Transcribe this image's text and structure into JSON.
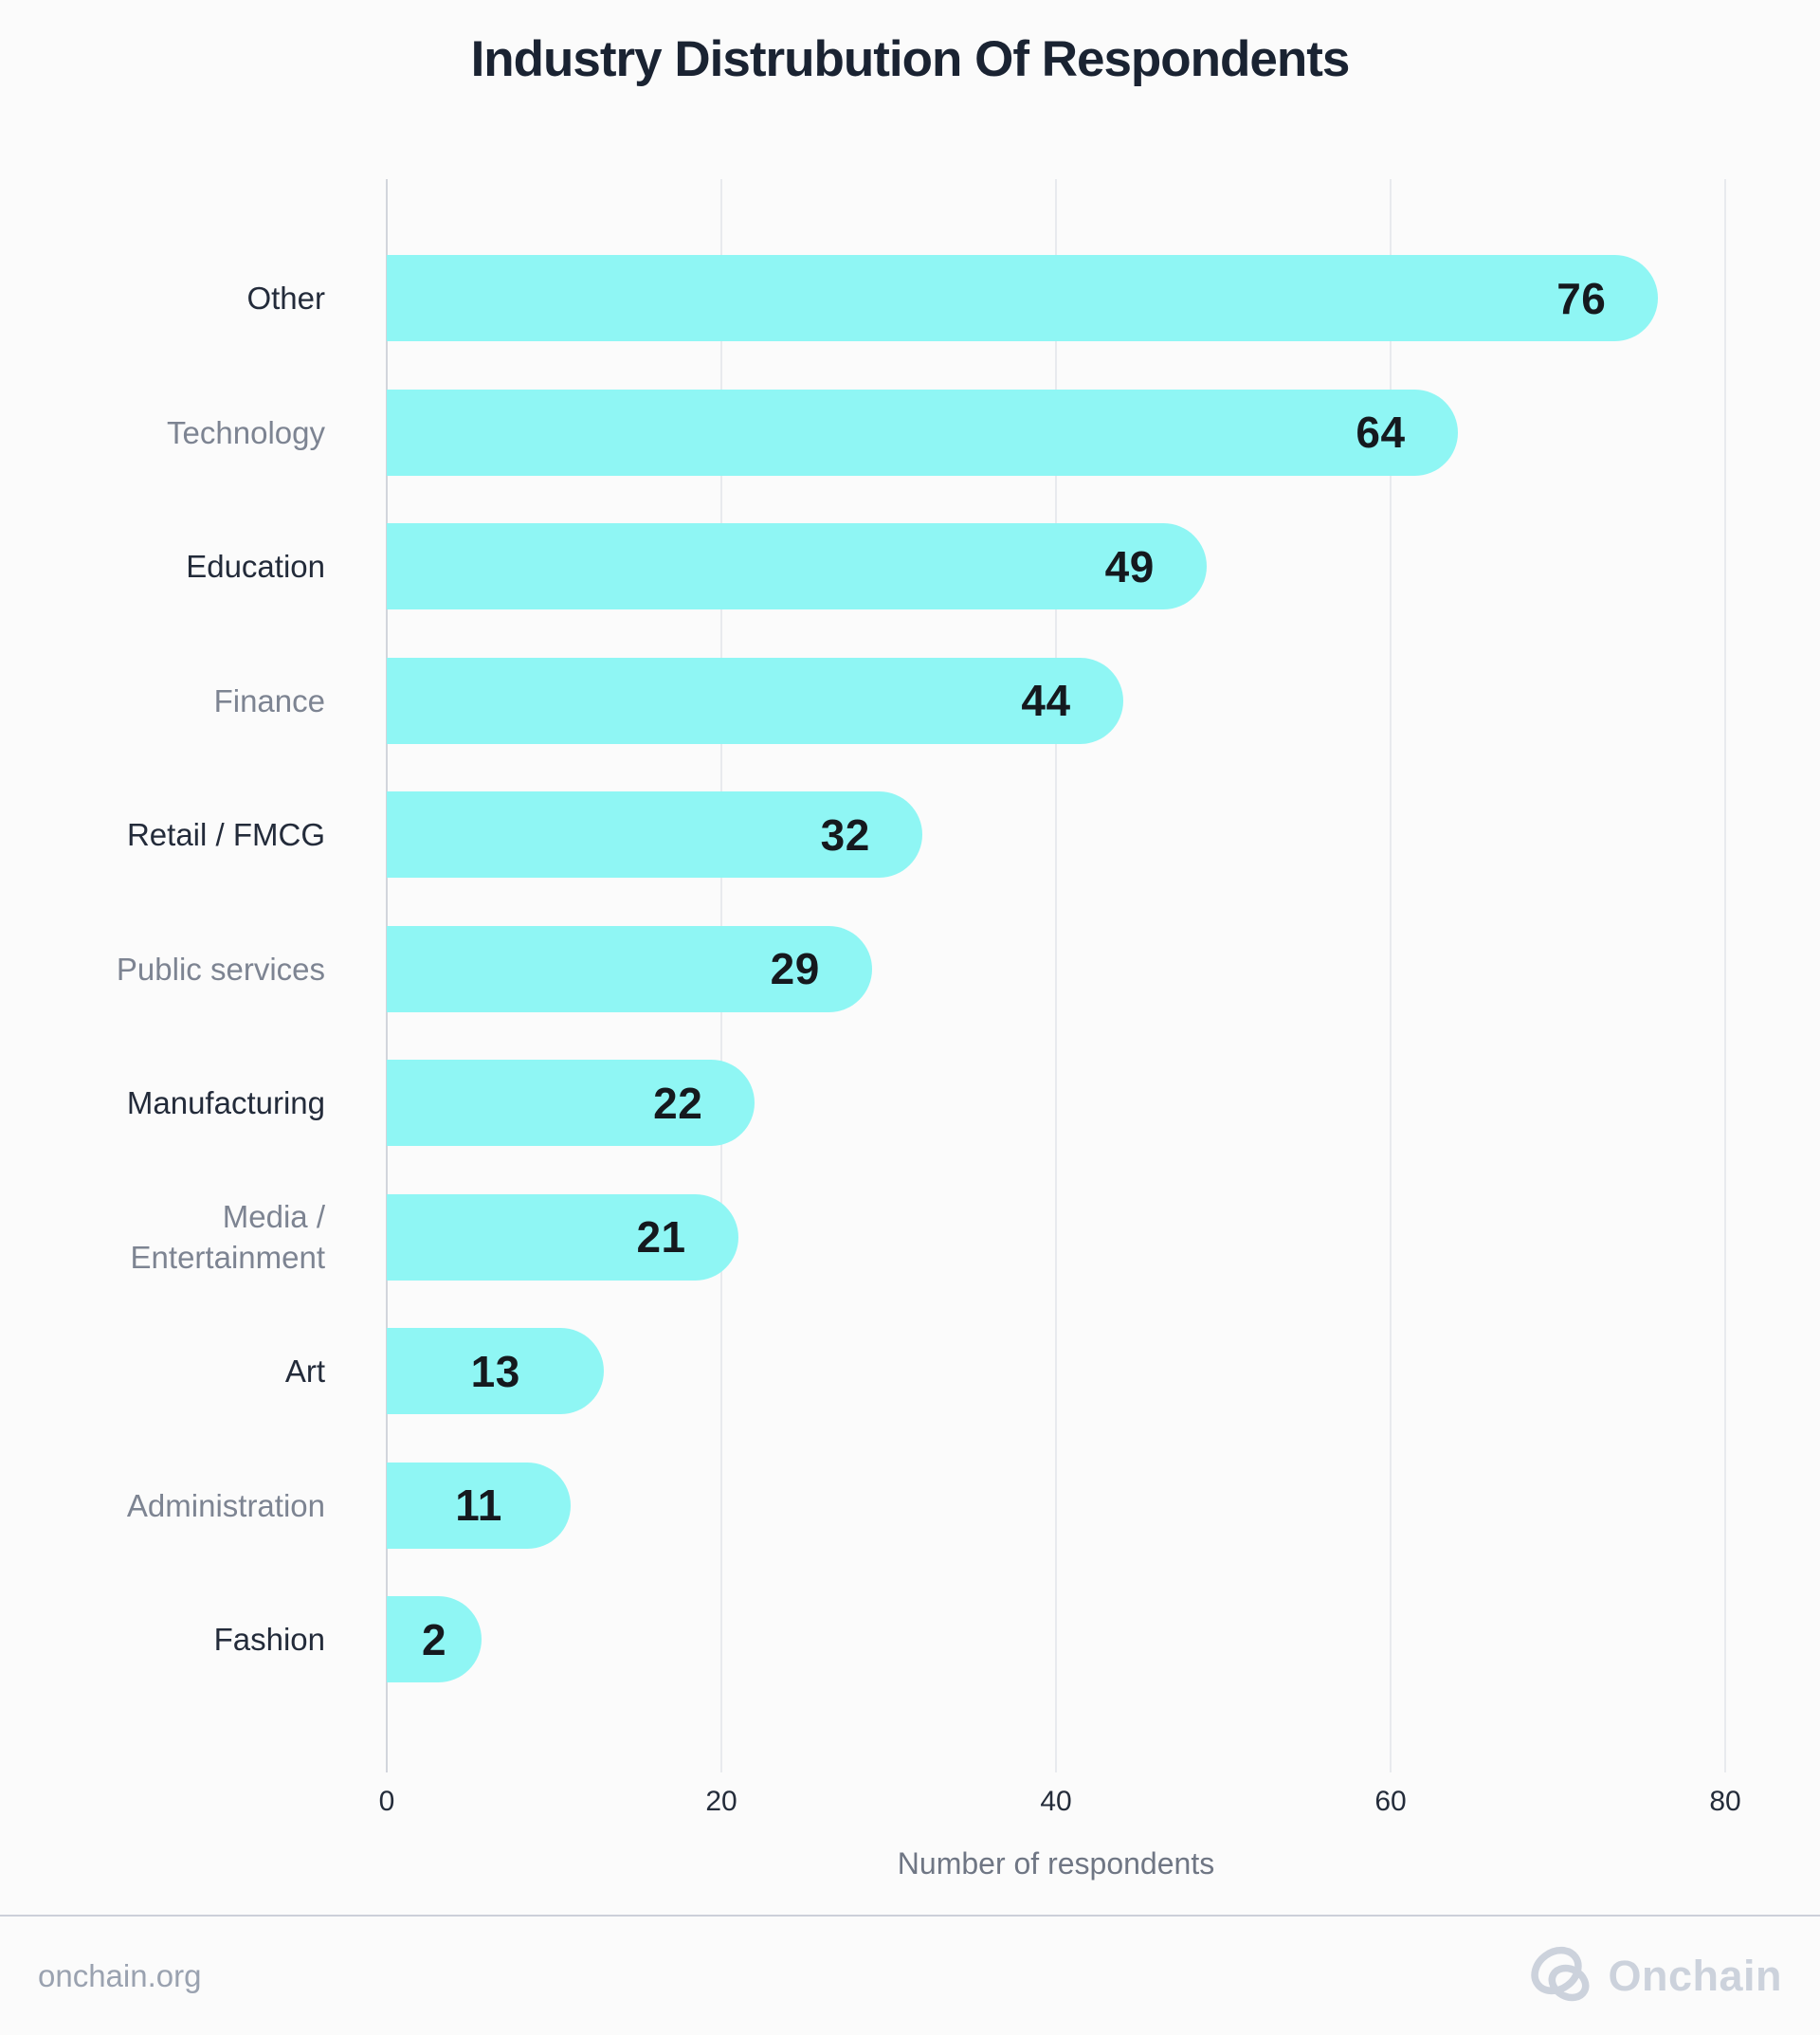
{
  "title": "Industry Distrubution Of Respondents",
  "chart_data": {
    "type": "bar",
    "orientation": "horizontal",
    "title": "Industry Distrubution Of Respondents",
    "xlabel": "Number of respondents",
    "xlim": [
      0,
      80
    ],
    "xticks": [
      0,
      20,
      40,
      60,
      80
    ],
    "grid": "vertical-gridlines",
    "legend": "none",
    "bar_color": "#8FF6F4",
    "value_label_color": "#15191E",
    "categories": [
      "Other",
      "Technology",
      "Education",
      "Finance",
      "Retail / FMCG",
      "Public services",
      "Manufacturing",
      "Media / Entertainment",
      "Art",
      "Administration",
      "Fashion"
    ],
    "values": [
      76,
      64,
      49,
      44,
      32,
      29,
      22,
      21,
      13,
      11,
      2
    ],
    "category_label_variant": [
      "dark",
      "muted",
      "dark",
      "muted",
      "dark",
      "muted",
      "dark",
      "muted",
      "dark",
      "muted",
      "dark"
    ]
  },
  "footer": {
    "site": "onchain.org",
    "brand": "Onchain",
    "logo_color": "#CCD2DC"
  },
  "colors": {
    "background": "#FBFBFB",
    "title": "#1A2332",
    "category_dark": "#232B3A",
    "category_muted": "#7D8492",
    "tick": "#242C3A",
    "axis_label": "#6F7684",
    "gridline": "#E8EAEE",
    "axis_line": "#D2D5DC",
    "divider": "#CCD0D9",
    "footer_text": "#9AA2B0"
  }
}
